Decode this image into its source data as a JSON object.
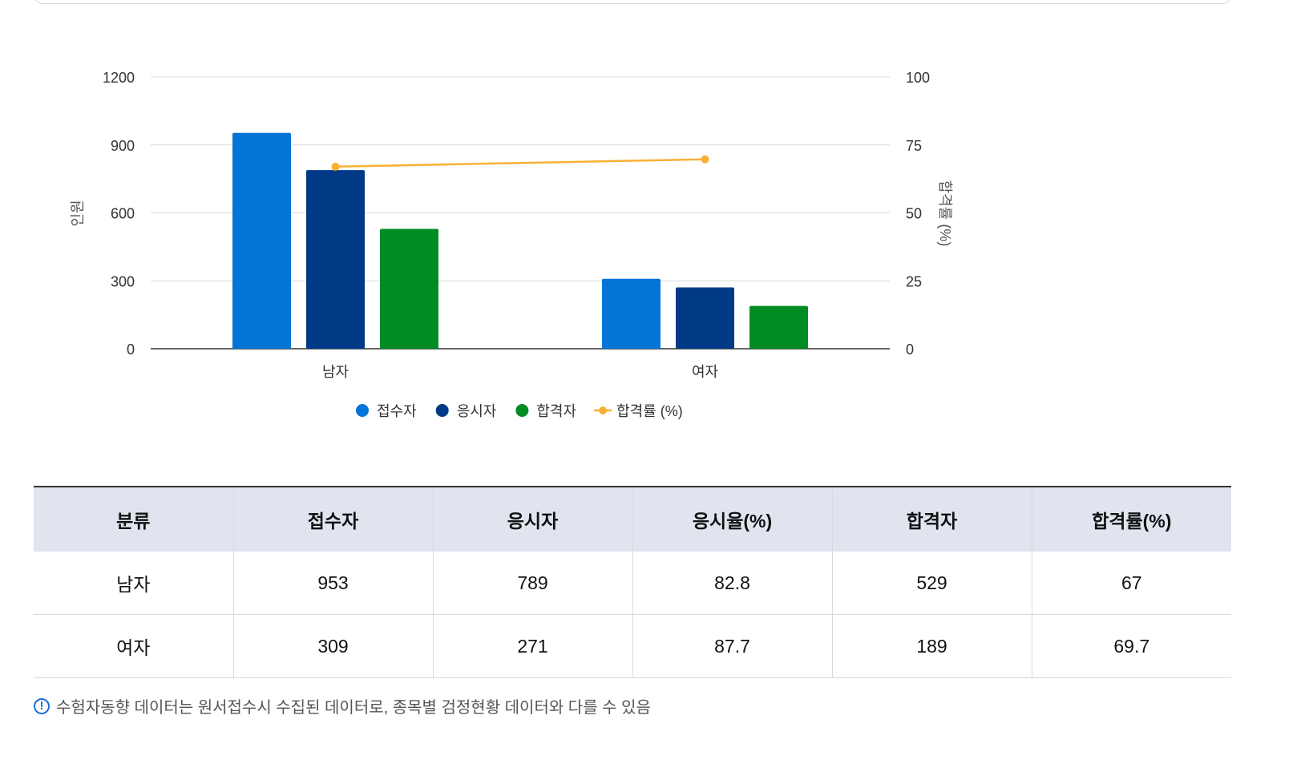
{
  "chart_data": {
    "type": "bar",
    "categories": [
      "남자",
      "여자"
    ],
    "series": [
      {
        "name": "접수자",
        "values": [
          953,
          309
        ],
        "color": "#0375d6",
        "kind": "bar",
        "axis": "left"
      },
      {
        "name": "응시자",
        "values": [
          789,
          271
        ],
        "color": "#003a86",
        "kind": "bar",
        "axis": "left"
      },
      {
        "name": "합격자",
        "values": [
          529,
          189
        ],
        "color": "#008c23",
        "kind": "bar",
        "axis": "left"
      },
      {
        "name": "합격률 (%)",
        "values": [
          67,
          69.7
        ],
        "color": "#f8b035",
        "kind": "line",
        "axis": "right"
      }
    ],
    "ylabel": "인원",
    "y2label": "합격률 (%)",
    "ylim": [
      0,
      1200
    ],
    "y2lim": [
      0,
      100
    ],
    "yticks": [
      0,
      300,
      600,
      900,
      1200
    ],
    "y2ticks": [
      0,
      25,
      50,
      75,
      100
    ],
    "grid": true,
    "legend_position": "bottom"
  },
  "table": {
    "headers": [
      "분류",
      "접수자",
      "응시자",
      "응시율(%)",
      "합격자",
      "합격률(%)"
    ],
    "rows": [
      [
        "남자",
        "953",
        "789",
        "82.8",
        "529",
        "67"
      ],
      [
        "여자",
        "309",
        "271",
        "87.7",
        "189",
        "69.7"
      ]
    ]
  },
  "note": {
    "icon": "info-icon",
    "icon_glyph": "!",
    "text": "수험자동향 데이터는 원서접수시 수집된 데이터로, 종목별 검정현황 데이터와 다를 수 있음"
  },
  "colors": {
    "header_bg": "#dfe4ee",
    "border": "#d5d9e0",
    "note_icon": "#1a6fd6"
  }
}
